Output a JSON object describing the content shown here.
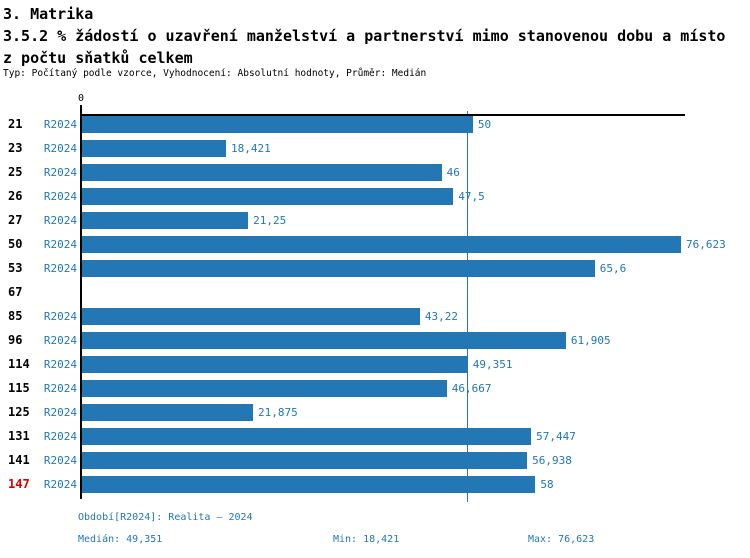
{
  "header": {
    "section_title": "3. Matrika",
    "indicator_title_line1": "3.5.2 % žádostí o uzavření manželství a partnerství mimo stanovenou dobu a místo",
    "indicator_title_line2": "z počtu sňatků celkem",
    "meta": "Typ: Počítaný podle vzorce, Vyhodnocení: Absolutní hodnoty, Průměr: Medián"
  },
  "chart_data": {
    "type": "bar",
    "orientation": "horizontal",
    "title": "3.5.2 % žádostí o uzavření manželství a partnerství mimo stanovenou dobu a místo z počtu sňatků celkem",
    "axis_zero_label": "0",
    "xlim": [
      0,
      76.623
    ],
    "grid": false,
    "median_value": 49.351,
    "min_value": 18.421,
    "max_value": 76.623,
    "series_label": "R2024",
    "categories": [
      "21",
      "23",
      "25",
      "26",
      "27",
      "50",
      "53",
      "67",
      "85",
      "96",
      "114",
      "115",
      "125",
      "131",
      "141",
      "147"
    ],
    "rows": [
      {
        "id": "21",
        "period": "R2024",
        "value": 50,
        "value_label": "50",
        "highlight": false
      },
      {
        "id": "23",
        "period": "R2024",
        "value": 18.421,
        "value_label": "18,421",
        "highlight": false
      },
      {
        "id": "25",
        "period": "R2024",
        "value": 46,
        "value_label": "46",
        "highlight": false
      },
      {
        "id": "26",
        "period": "R2024",
        "value": 47.5,
        "value_label": "47,5",
        "highlight": false
      },
      {
        "id": "27",
        "period": "R2024",
        "value": 21.25,
        "value_label": "21,25",
        "highlight": false
      },
      {
        "id": "50",
        "period": "R2024",
        "value": 76.623,
        "value_label": "76,623",
        "highlight": false
      },
      {
        "id": "53",
        "period": "R2024",
        "value": 65.6,
        "value_label": "65,6",
        "highlight": false
      },
      {
        "id": "67",
        "period": null,
        "value": null,
        "value_label": "",
        "highlight": false
      },
      {
        "id": "85",
        "period": "R2024",
        "value": 43.22,
        "value_label": "43,22",
        "highlight": false
      },
      {
        "id": "96",
        "period": "R2024",
        "value": 61.905,
        "value_label": "61,905",
        "highlight": false
      },
      {
        "id": "114",
        "period": "R2024",
        "value": 49.351,
        "value_label": "49,351",
        "highlight": false
      },
      {
        "id": "115",
        "period": "R2024",
        "value": 46.667,
        "value_label": "46,667",
        "highlight": false
      },
      {
        "id": "125",
        "period": "R2024",
        "value": 21.875,
        "value_label": "21,875",
        "highlight": false
      },
      {
        "id": "131",
        "period": "R2024",
        "value": 57.447,
        "value_label": "57,447",
        "highlight": false
      },
      {
        "id": "141",
        "period": "R2024",
        "value": 56.938,
        "value_label": "56,938",
        "highlight": false
      },
      {
        "id": "147",
        "period": "R2024",
        "value": 58,
        "value_label": "58",
        "highlight": true
      }
    ]
  },
  "footer": {
    "period_line": "Období[R2024]: Realita – 2024",
    "median": "Medián: 49,351",
    "min": "Min: 18,421",
    "max": "Max: 76,623"
  },
  "colors": {
    "bar_blue": "#2277b4",
    "text_blue": "#2277b4",
    "highlight_red": "#d60000",
    "axis_black": "#000000",
    "background": "#ffffff"
  }
}
